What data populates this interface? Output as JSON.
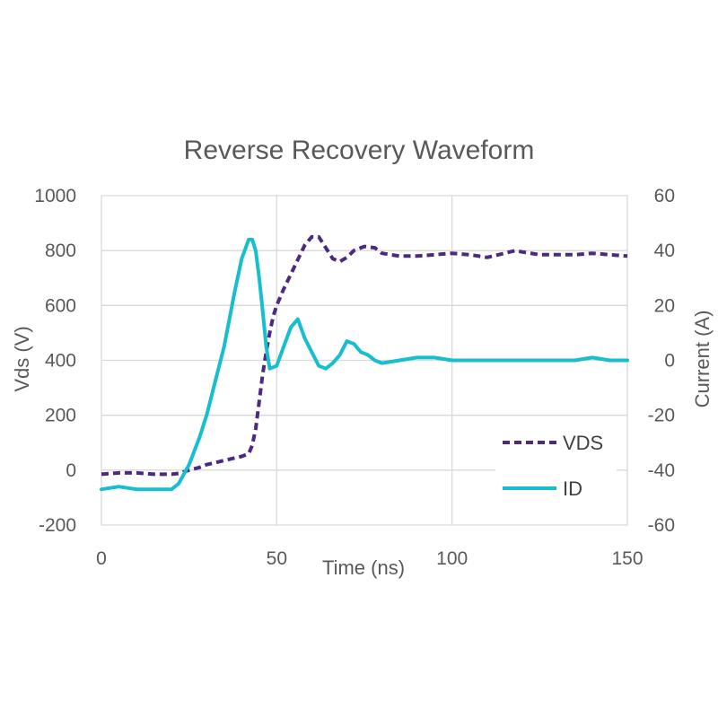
{
  "chart_data": {
    "type": "line",
    "title": "Reverse Recovery Waveform",
    "xlabel": "Time (ns)",
    "ylabel": "Vds (V)",
    "y2label": "Current (A)",
    "xlim": [
      0,
      150
    ],
    "ylim": [
      -200,
      1000
    ],
    "y2lim": [
      -60,
      60
    ],
    "xticks": [
      "0",
      "50",
      "100",
      "150"
    ],
    "yticks": [
      "-200",
      "0",
      "200",
      "400",
      "600",
      "800",
      "1000"
    ],
    "y2ticks": [
      "-60",
      "-40",
      "-20",
      "0",
      "20",
      "40",
      "60"
    ],
    "grid": true,
    "legend_position": "bottom-right",
    "series": [
      {
        "name": "VDS",
        "axis": "left",
        "color": "#4b2a80",
        "style": "dashed",
        "x": [
          0,
          5,
          10,
          15,
          20,
          22,
          25,
          28,
          30,
          35,
          40,
          42,
          43,
          44,
          45,
          46,
          47,
          48,
          49,
          50,
          52,
          55,
          58,
          60,
          62,
          64,
          66,
          68,
          70,
          72,
          75,
          78,
          80,
          85,
          90,
          95,
          100,
          105,
          110,
          115,
          118,
          120,
          125,
          130,
          135,
          140,
          145,
          150
        ],
        "y": [
          -15,
          -10,
          -10,
          -15,
          -15,
          -12,
          0,
          10,
          20,
          35,
          50,
          60,
          90,
          150,
          250,
          350,
          430,
          500,
          560,
          600,
          660,
          740,
          820,
          850,
          850,
          810,
          770,
          760,
          775,
          800,
          815,
          810,
          790,
          780,
          780,
          785,
          790,
          785,
          775,
          790,
          800,
          795,
          785,
          785,
          785,
          790,
          785,
          780
        ]
      },
      {
        "name": "ID",
        "axis": "right",
        "color": "#17becf",
        "style": "solid",
        "x": [
          0,
          5,
          10,
          15,
          20,
          22,
          25,
          28,
          30,
          35,
          38,
          40,
          42,
          43,
          44,
          45,
          46,
          47,
          48,
          50,
          52,
          54,
          56,
          58,
          60,
          62,
          64,
          66,
          68,
          70,
          72,
          74,
          76,
          78,
          80,
          85,
          90,
          95,
          100,
          110,
          120,
          130,
          135,
          140,
          145,
          150
        ],
        "y": [
          -47,
          -46,
          -47,
          -47,
          -47,
          -45,
          -38,
          -28,
          -20,
          5,
          25,
          37,
          44,
          44,
          40,
          30,
          18,
          5,
          -3,
          -2,
          5,
          12,
          15,
          8,
          3,
          -2,
          -3,
          -1,
          2,
          7,
          6,
          3,
          2,
          0,
          -1,
          0,
          1,
          1,
          0,
          0,
          0,
          0,
          0,
          1,
          0,
          0
        ]
      }
    ]
  }
}
